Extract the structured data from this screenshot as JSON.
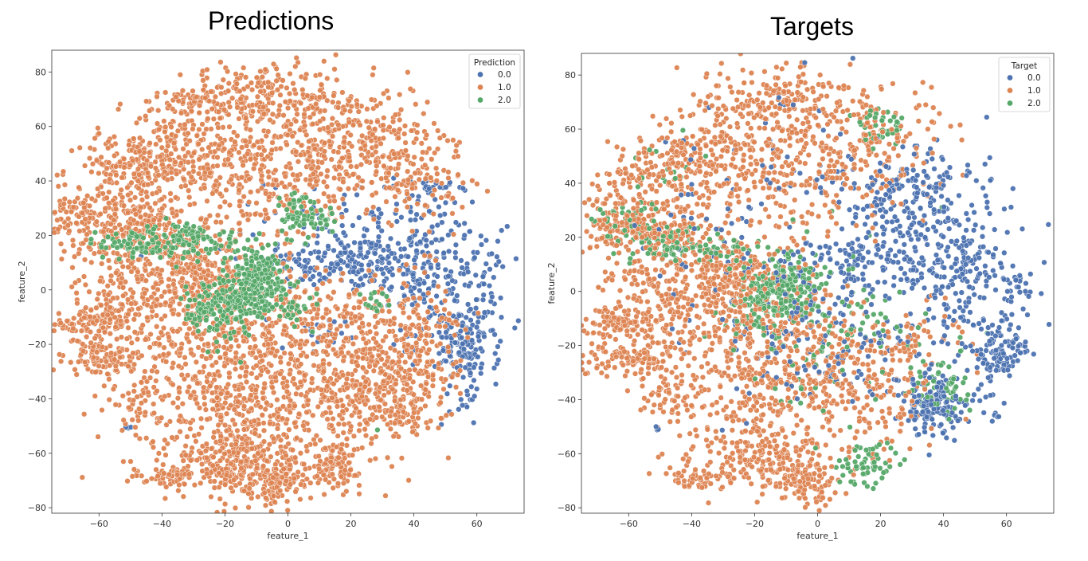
{
  "chart_data": [
    {
      "type": "scatter",
      "title": "Predictions",
      "xlabel": "feature_1",
      "ylabel": "feature_2",
      "xlim": [
        -75,
        75
      ],
      "ylim": [
        -82,
        88
      ],
      "xticks": [
        -60,
        -40,
        -20,
        0,
        20,
        40,
        60
      ],
      "yticks": [
        -80,
        -60,
        -40,
        -20,
        0,
        20,
        40,
        60,
        80
      ],
      "legend": {
        "title": "Prediction",
        "placement": "top-right"
      },
      "series": [
        {
          "name": "0.0",
          "color": "#4c72b0",
          "clusters": [
            [
              18,
              10,
              16,
              5,
              220
            ],
            [
              45,
              5,
              7,
              14,
              170
            ],
            [
              62,
              0,
              4,
              10,
              50
            ],
            [
              57,
              -22,
              5,
              6,
              120
            ],
            [
              55,
              -40,
              3,
              5,
              15
            ],
            [
              30,
              27,
              18,
              7,
              90
            ],
            [
              8,
              -18,
              5,
              4,
              20
            ],
            [
              -51,
              -51,
              1,
              1,
              4
            ],
            [
              46,
              38,
              3,
              2,
              15
            ],
            [
              72,
              11,
              0.5,
              0.5,
              1
            ]
          ]
        },
        {
          "name": "1.0",
          "color": "#dd8452",
          "clusters": [
            [
              -50,
              45,
              10,
              6,
              170
            ],
            [
              -35,
              55,
              8,
              10,
              120
            ],
            [
              -20,
              50,
              12,
              14,
              220
            ],
            [
              0,
              45,
              14,
              16,
              260
            ],
            [
              20,
              55,
              12,
              10,
              220
            ],
            [
              38,
              45,
              10,
              10,
              150
            ],
            [
              -60,
              27,
              10,
              6,
              200
            ],
            [
              -45,
              22,
              8,
              5,
              120
            ],
            [
              -10,
              72,
              10,
              6,
              130
            ],
            [
              -32,
              70,
              3,
              2,
              25
            ],
            [
              8,
              70,
              5,
              5,
              40
            ],
            [
              -50,
              0,
              12,
              12,
              220
            ],
            [
              -30,
              -10,
              14,
              14,
              250
            ],
            [
              -28,
              5,
              7,
              6,
              160
            ],
            [
              -62,
              -12,
              6,
              3,
              90
            ],
            [
              -60,
              -25,
              8,
              3,
              100
            ],
            [
              -48,
              -40,
              5,
              6,
              60
            ],
            [
              -10,
              -20,
              12,
              12,
              220
            ],
            [
              -20,
              -40,
              10,
              10,
              150
            ],
            [
              -22,
              -60,
              12,
              6,
              130
            ],
            [
              -12,
              -66,
              8,
              8,
              130
            ],
            [
              -3,
              -71,
              4,
              4,
              90
            ],
            [
              -10,
              -50,
              8,
              8,
              80
            ],
            [
              10,
              -30,
              12,
              12,
              160
            ],
            [
              15,
              -40,
              10,
              12,
              150
            ],
            [
              15,
              -64,
              4,
              4,
              110
            ],
            [
              35,
              -40,
              8,
              8,
              200
            ],
            [
              30,
              -15,
              10,
              10,
              120
            ],
            [
              40,
              -25,
              8,
              8,
              80
            ],
            [
              15,
              -5,
              15,
              8,
              80
            ],
            [
              -38,
              -69,
              6,
              2,
              50
            ],
            [
              -20,
              -67,
              4,
              3,
              60
            ],
            [
              48,
              -10,
              5,
              5,
              30
            ]
          ]
        },
        {
          "name": "2.0",
          "color": "#55a868",
          "clusters": [
            [
              -48,
              17,
              6,
              3,
              80
            ],
            [
              -32,
              19,
              5,
              3,
              70
            ],
            [
              -18,
              17,
              6,
              2,
              15
            ],
            [
              -10,
              3,
              5,
              6,
              220
            ],
            [
              -20,
              -6,
              5,
              6,
              120
            ],
            [
              -27,
              -8,
              4,
              3,
              40
            ],
            [
              2,
              28,
              3,
              5,
              40
            ],
            [
              10,
              26,
              4,
              2,
              30
            ],
            [
              2,
              -8,
              5,
              4,
              20
            ],
            [
              28,
              -5,
              3,
              2,
              15
            ],
            [
              29,
              -52,
              0.5,
              0.5,
              1
            ]
          ]
        }
      ]
    },
    {
      "type": "scatter",
      "title": "Targets",
      "xlabel": "feature_1",
      "ylabel": "feature_2",
      "xlim": [
        -75,
        75
      ],
      "ylim": [
        -82,
        88
      ],
      "xticks": [
        -60,
        -40,
        -20,
        0,
        20,
        40,
        60
      ],
      "yticks": [
        -80,
        -60,
        -40,
        -20,
        0,
        20,
        40,
        60,
        80
      ],
      "legend": {
        "title": "Target",
        "placement": "top-right"
      },
      "series": [
        {
          "name": "0.0",
          "color": "#4c72b0",
          "clusters": [
            [
              18,
              10,
              16,
              5,
              160
            ],
            [
              45,
              5,
              7,
              14,
              150
            ],
            [
              62,
              0,
              4,
              10,
              40
            ],
            [
              57,
              -22,
              5,
              6,
              110
            ],
            [
              55,
              -40,
              3,
              5,
              10
            ],
            [
              30,
              37,
              14,
              8,
              150
            ],
            [
              25,
              25,
              10,
              5,
              50
            ],
            [
              36,
              -42,
              5,
              6,
              160
            ],
            [
              15,
              -20,
              15,
              12,
              90
            ],
            [
              -10,
              -15,
              15,
              15,
              70
            ],
            [
              -30,
              20,
              15,
              20,
              50
            ],
            [
              -5,
              50,
              20,
              15,
              40
            ],
            [
              -51,
              -51,
              1,
              1,
              4
            ],
            [
              72,
              11,
              0.5,
              0.5,
              1
            ]
          ]
        },
        {
          "name": "1.0",
          "color": "#dd8452",
          "clusters": [
            [
              -50,
              45,
              10,
              6,
              150
            ],
            [
              -35,
              55,
              8,
              10,
              100
            ],
            [
              -20,
              50,
              12,
              14,
              180
            ],
            [
              0,
              45,
              14,
              16,
              180
            ],
            [
              20,
              55,
              12,
              10,
              130
            ],
            [
              -60,
              27,
              10,
              6,
              160
            ],
            [
              -45,
              22,
              8,
              5,
              90
            ],
            [
              -10,
              72,
              10,
              6,
              120
            ],
            [
              -50,
              0,
              12,
              12,
              200
            ],
            [
              -30,
              -10,
              14,
              14,
              220
            ],
            [
              -28,
              5,
              7,
              6,
              150
            ],
            [
              -62,
              -12,
              6,
              3,
              90
            ],
            [
              -60,
              -25,
              8,
              3,
              100
            ],
            [
              -48,
              -40,
              5,
              6,
              60
            ],
            [
              -10,
              -20,
              12,
              12,
              170
            ],
            [
              -20,
              -40,
              10,
              10,
              130
            ],
            [
              -22,
              -60,
              12,
              6,
              120
            ],
            [
              -12,
              -66,
              8,
              8,
              110
            ],
            [
              -3,
              -71,
              4,
              4,
              80
            ],
            [
              10,
              -30,
              12,
              12,
              110
            ],
            [
              15,
              -40,
              10,
              12,
              110
            ],
            [
              30,
              -20,
              10,
              10,
              60
            ],
            [
              -38,
              -69,
              6,
              2,
              50
            ]
          ]
        },
        {
          "name": "2.0",
          "color": "#55a868",
          "clusters": [
            [
              -48,
              17,
              6,
              3,
              70
            ],
            [
              -30,
              16,
              5,
              3,
              40
            ],
            [
              -10,
              3,
              5,
              6,
              180
            ],
            [
              -20,
              -6,
              5,
              6,
              90
            ],
            [
              -60,
              25,
              5,
              4,
              40
            ],
            [
              20,
              62,
              4,
              4,
              40
            ],
            [
              40,
              -36,
              4,
              4,
              60
            ],
            [
              15,
              -63,
              5,
              4,
              60
            ],
            [
              10,
              -10,
              15,
              15,
              80
            ],
            [
              -5,
              -25,
              10,
              10,
              30
            ],
            [
              -50,
              45,
              8,
              5,
              15
            ]
          ]
        }
      ]
    }
  ]
}
